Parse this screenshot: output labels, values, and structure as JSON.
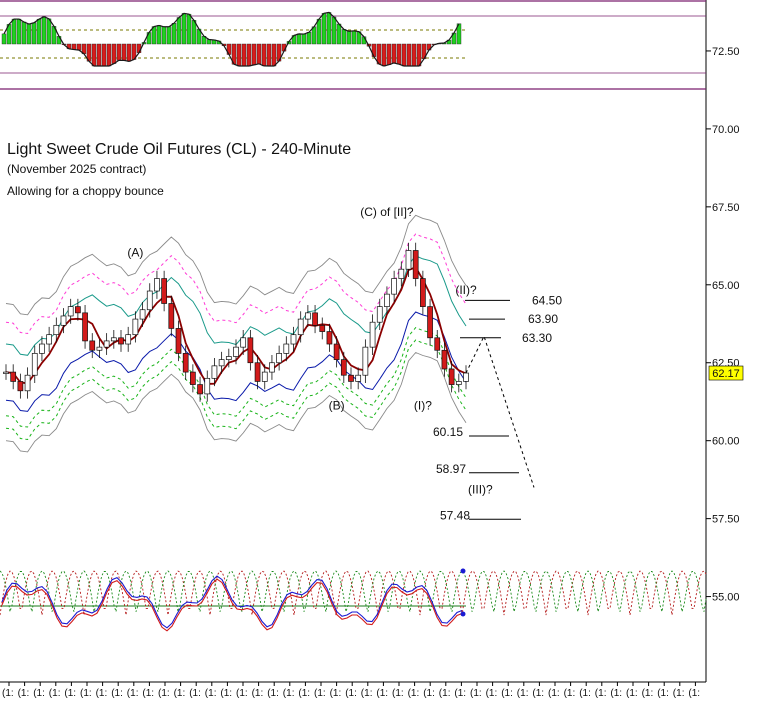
{
  "chart_data": {
    "type": "line",
    "title": "Light Sweet Crude Oil Futures (CL) - 240-Minute",
    "subtitle": "(November 2025 contract)",
    "note": "Allowing for a choppy bounce",
    "y_axis": {
      "ylim": [
        53.8,
        73.3
      ],
      "ticks": [
        "72.50",
        "70.00",
        "67.50",
        "65.00",
        "62.50",
        "60.00",
        "57.50",
        "55.00"
      ]
    },
    "last_price": "62.17",
    "wave_labels": [
      {
        "text": "(A)",
        "x": 18,
        "y": 65.9
      },
      {
        "text": "(B)",
        "x": 46,
        "y": 61.0
      },
      {
        "text": "(C) of [II]?",
        "x": 53,
        "y": 67.2
      },
      {
        "text": "(I)?",
        "x": 58,
        "y": 61.0
      },
      {
        "text": "(II)?",
        "x": 64,
        "y": 64.7
      },
      {
        "text": "(III)?",
        "x": 66,
        "y": 58.3
      }
    ],
    "target_levels": [
      {
        "label": "64.50",
        "value": 64.5
      },
      {
        "label": "63.90",
        "value": 63.9
      },
      {
        "label": "63.30",
        "value": 63.3
      },
      {
        "label": "60.15",
        "value": 60.15
      },
      {
        "label": "58.97",
        "value": 58.97
      },
      {
        "label": "57.48",
        "value": 57.48
      }
    ],
    "close_series": [
      62.2,
      61.9,
      61.6,
      62.1,
      62.8,
      63.1,
      63.4,
      63.7,
      64.0,
      64.3,
      64.1,
      63.2,
      62.9,
      63.0,
      63.2,
      63.3,
      63.1,
      63.4,
      63.9,
      64.2,
      64.8,
      65.2,
      64.4,
      63.6,
      62.8,
      62.2,
      61.8,
      61.5,
      62.0,
      62.4,
      62.6,
      62.7,
      63.0,
      63.3,
      62.5,
      61.9,
      62.2,
      62.5,
      62.8,
      63.1,
      63.4,
      63.9,
      64.1,
      63.7,
      63.5,
      63.1,
      62.6,
      62.1,
      61.9,
      62.1,
      63.0,
      63.8,
      64.3,
      64.7,
      65.2,
      65.5,
      66.1,
      65.2,
      64.3,
      63.3,
      62.9,
      62.3,
      61.8,
      61.9,
      62.17
    ],
    "x_tick_label": "(1:",
    "x_tick_count": 45,
    "top_panel": {
      "type": "histogram"
    },
    "bottom_panel": {
      "type": "oscillator"
    }
  }
}
